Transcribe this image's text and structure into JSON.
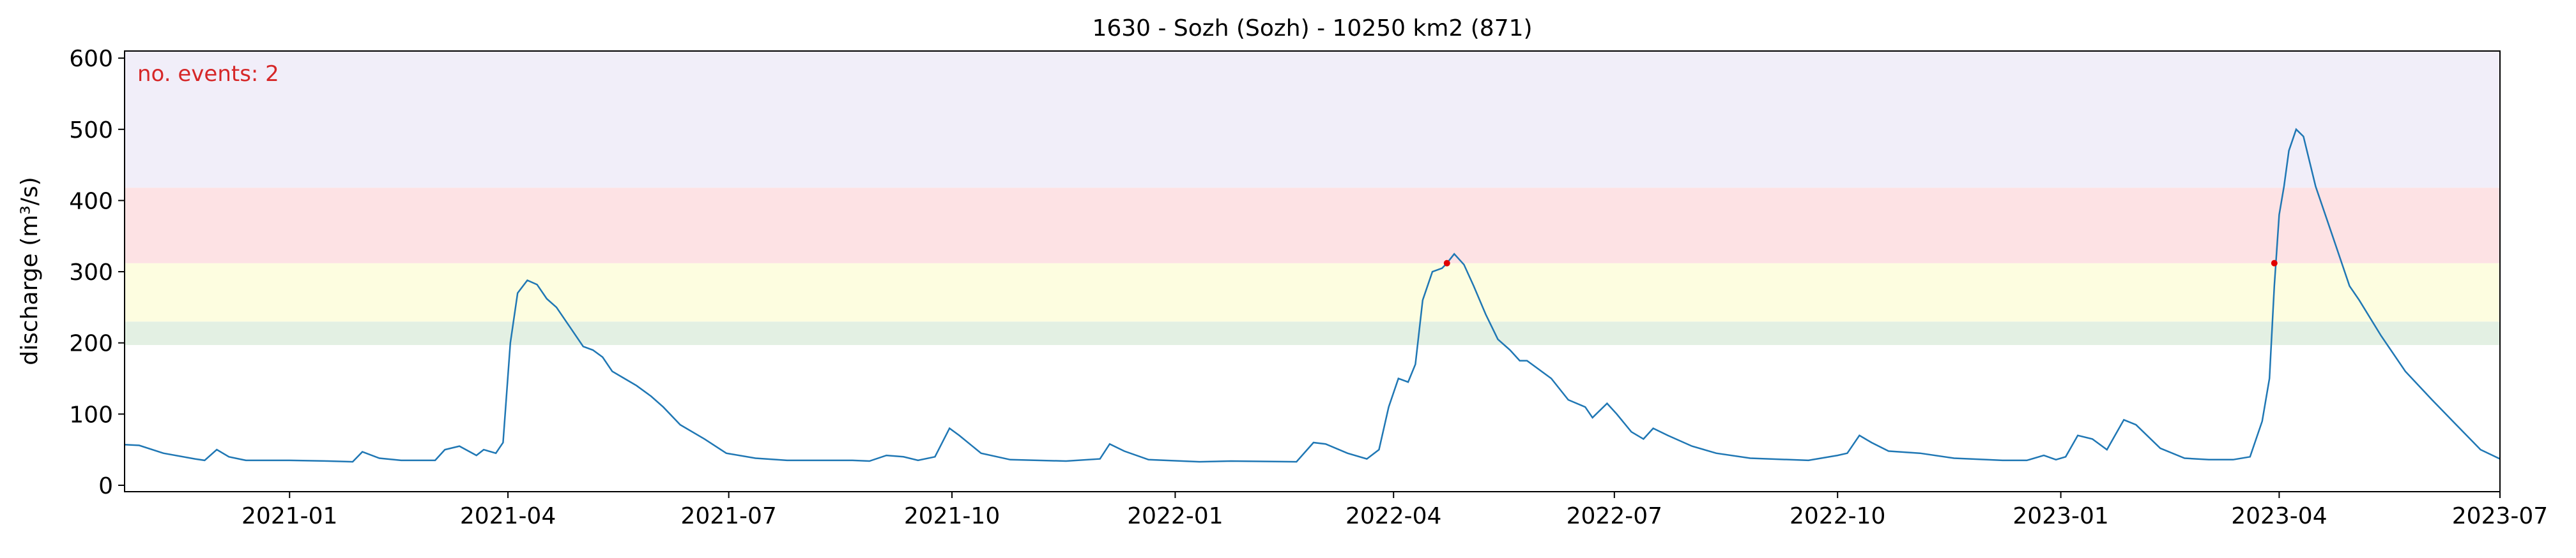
{
  "chart_data": {
    "type": "line",
    "title": "1630 - Sozh (Sozh) - 10250 km2 (871)",
    "y_label": "discharge (m³/s)",
    "annotation": "no. events: 2",
    "annotation_color": "#d62728",
    "thresholds": [
      197,
      230,
      312,
      418
    ],
    "threshold_colors": [
      "#e3f0e3",
      "#fdfde0",
      "#fde2e4",
      "#f1eef9"
    ],
    "xlim": [
      -68,
      911
    ],
    "xticks": [
      {
        "value": 0,
        "label": "2021-01"
      },
      {
        "value": 90,
        "label": "2021-04"
      },
      {
        "value": 181,
        "label": "2021-07"
      },
      {
        "value": 273,
        "label": "2021-10"
      },
      {
        "value": 365,
        "label": "2022-01"
      },
      {
        "value": 455,
        "label": "2022-04"
      },
      {
        "value": 546,
        "label": "2022-07"
      },
      {
        "value": 638,
        "label": "2022-10"
      },
      {
        "value": 730,
        "label": "2023-01"
      },
      {
        "value": 820,
        "label": "2023-04"
      },
      {
        "value": 911,
        "label": "2023-07"
      }
    ],
    "ylim": [
      -9,
      610
    ],
    "yticks": [
      0,
      100,
      200,
      300,
      400,
      500,
      600
    ],
    "series": [
      {
        "name": "discharge",
        "color": "#1f77b4",
        "x": [
          -68,
          -62,
          -52,
          -39,
          -35,
          -30,
          -25,
          -18,
          0,
          16,
          26,
          30,
          37,
          46,
          60,
          64,
          70,
          77,
          80,
          85,
          88,
          91,
          94,
          98,
          102,
          106,
          110,
          115,
          121,
          125,
          129,
          133,
          138,
          143,
          149,
          154,
          161,
          171,
          180,
          192,
          205,
          232,
          239,
          246,
          253,
          259,
          266,
          272,
          276,
          285,
          297,
          320,
          334,
          338,
          344,
          354,
          375,
          388,
          415,
          422,
          427,
          436,
          444,
          449,
          453,
          457,
          461,
          464,
          467,
          471,
          475,
          477,
          480,
          484,
          488,
          493,
          498,
          503,
          507,
          510,
          514,
          520,
          527,
          534,
          537,
          543,
          547,
          553,
          558,
          562,
          568,
          578,
          588,
          602,
          626,
          638,
          642,
          647,
          652,
          659,
          672,
          686,
          706,
          716,
          723,
          728,
          732,
          737,
          743,
          749,
          756,
          761,
          771,
          781,
          791,
          801,
          808,
          813,
          816,
          818,
          820,
          822,
          824,
          827,
          830,
          835,
          842,
          849,
          853,
          862,
          872,
          883,
          893,
          903,
          911
        ],
        "values": [
          57,
          56,
          45,
          37,
          35,
          50,
          40,
          35,
          35,
          34,
          33,
          47,
          38,
          35,
          35,
          50,
          55,
          42,
          50,
          45,
          60,
          200,
          270,
          288,
          282,
          262,
          250,
          225,
          195,
          190,
          180,
          160,
          150,
          140,
          125,
          110,
          85,
          65,
          45,
          38,
          35,
          35,
          34,
          42,
          40,
          35,
          40,
          80,
          70,
          45,
          36,
          34,
          37,
          58,
          48,
          36,
          33,
          34,
          33,
          60,
          58,
          45,
          37,
          50,
          110,
          150,
          145,
          170,
          260,
          300,
          305,
          312,
          325,
          310,
          280,
          240,
          205,
          190,
          175,
          175,
          165,
          150,
          120,
          110,
          95,
          115,
          100,
          75,
          65,
          80,
          70,
          55,
          45,
          38,
          35,
          42,
          45,
          70,
          60,
          48,
          45,
          38,
          35,
          35,
          42,
          36,
          40,
          70,
          65,
          50,
          92,
          85,
          52,
          38,
          36,
          36,
          40,
          90,
          150,
          280,
          380,
          420,
          470,
          500,
          490,
          420,
          350,
          280,
          260,
          210,
          160,
          120,
          85,
          50,
          37
        ]
      },
      {
        "name": "events",
        "color": "#e00000",
        "x": [
          477,
          818
        ],
        "values": [
          312,
          312
        ]
      }
    ]
  }
}
